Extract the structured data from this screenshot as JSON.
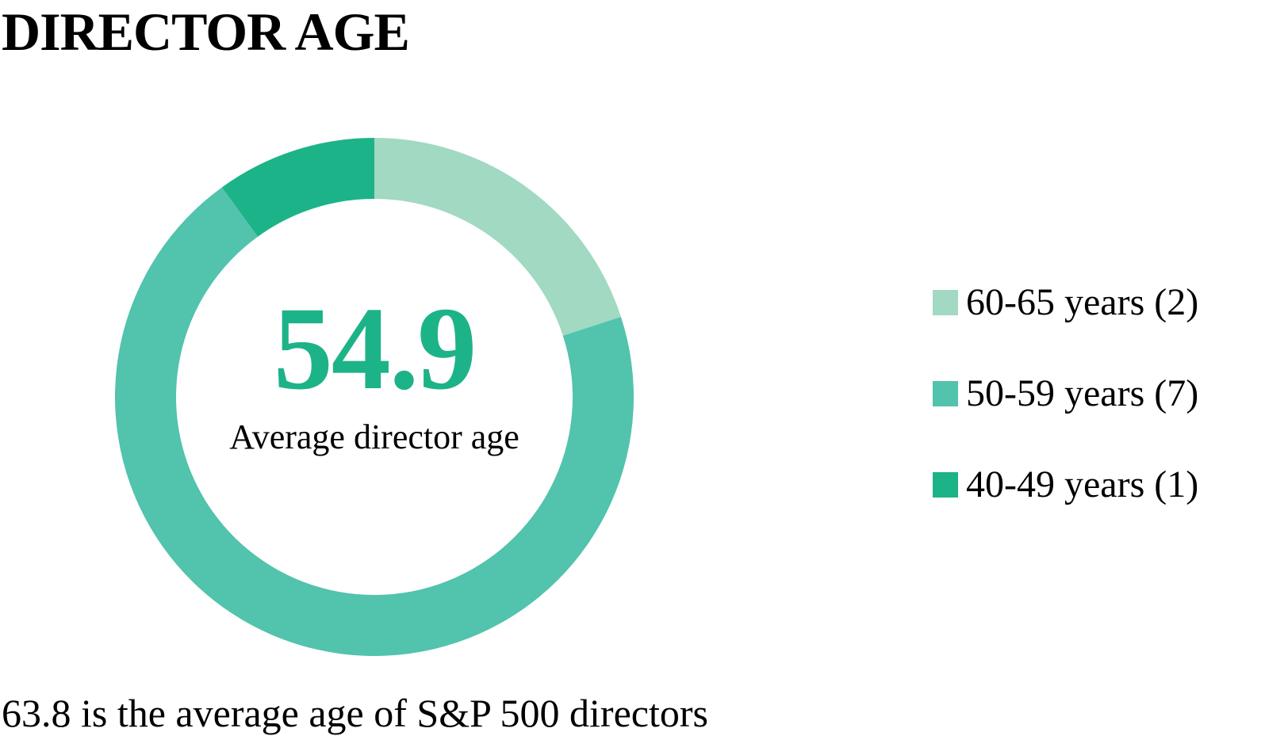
{
  "title": "DIRECTOR AGE",
  "center": {
    "value": "54.9",
    "label": "Average director age"
  },
  "footnote": "63.8 is the average age of S&P 500 directors",
  "colors": {
    "accent": "#1db388",
    "text": "#000000"
  },
  "chart_data": {
    "type": "pie",
    "variant": "donut",
    "title": "DIRECTOR AGE",
    "start_angle_deg": 0,
    "direction": "clockwise",
    "slices": [
      {
        "label": "60-65 years (2)",
        "category": "60-65 years",
        "value": 2,
        "color": "#a1d9c2"
      },
      {
        "label": "50-59 years (7)",
        "category": "50-59 years",
        "value": 7,
        "color": "#52c3ac"
      },
      {
        "label": "40-49 years (1)",
        "category": "40-49 years",
        "value": 1,
        "color": "#1db388"
      }
    ],
    "legend_position": "right",
    "center_value": 54.9,
    "center_label": "Average director age"
  }
}
